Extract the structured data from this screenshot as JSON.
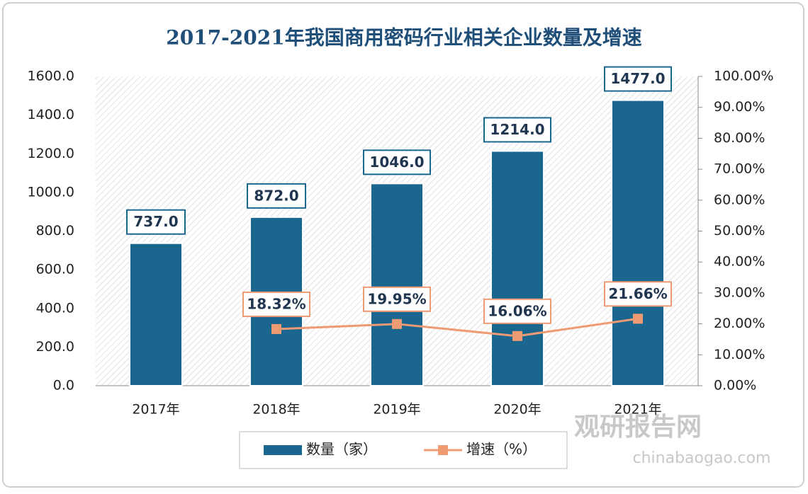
{
  "chart_data": {
    "type": "bar",
    "title": "2017-2021年我国商用密码行业相关企业数量及增速",
    "categories": [
      "2017年",
      "2018年",
      "2019年",
      "2020年",
      "2021年"
    ],
    "series": [
      {
        "name": "数量（家）",
        "type": "bar",
        "color": "#1b668f",
        "values": [
          737,
          872,
          1046,
          1214,
          1477
        ],
        "value_labels": [
          "737.0",
          "872.0",
          "1046.0",
          "1214.0",
          "1477.0"
        ]
      },
      {
        "name": "增速（%）",
        "type": "line",
        "axis": "y2",
        "color": "#ee9b74",
        "values": [
          null,
          18.32,
          19.95,
          16.06,
          21.66
        ],
        "value_labels": [
          null,
          "18.32%",
          "19.95%",
          "16.06%",
          "21.66%"
        ]
      }
    ],
    "ylim": [
      0,
      1600
    ],
    "yticks": [
      {
        "value": 0,
        "label": "0.0"
      },
      {
        "value": 200,
        "label": "200.0"
      },
      {
        "value": 400,
        "label": "400.0"
      },
      {
        "value": 600,
        "label": "600.0"
      },
      {
        "value": 800,
        "label": "800.0"
      },
      {
        "value": 1000,
        "label": "1000.0"
      },
      {
        "value": 1200,
        "label": "1200.0"
      },
      {
        "value": 1400,
        "label": "1400.0"
      },
      {
        "value": 1600,
        "label": "1600.0"
      }
    ],
    "y2lim": [
      0,
      100
    ],
    "y2ticks": [
      {
        "value": 0,
        "label": "0.00%"
      },
      {
        "value": 10,
        "label": "10.00%"
      },
      {
        "value": 20,
        "label": "20.00%"
      },
      {
        "value": 30,
        "label": "30.00%"
      },
      {
        "value": 40,
        "label": "40.00%"
      },
      {
        "value": 50,
        "label": "50.00%"
      },
      {
        "value": 60,
        "label": "60.00%"
      },
      {
        "value": 70,
        "label": "70.00%"
      },
      {
        "value": 80,
        "label": "80.00%"
      },
      {
        "value": 90,
        "label": "90.00%"
      },
      {
        "value": 100,
        "label": "100.00%"
      }
    ],
    "watermark": {
      "name": "观研报告网",
      "url": "chinabaogao.com"
    }
  }
}
